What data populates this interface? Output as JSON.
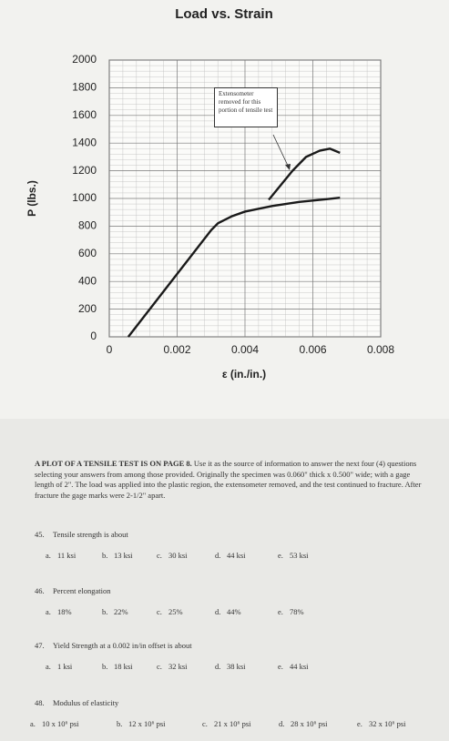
{
  "chart_data": {
    "type": "line",
    "title": "Load vs. Strain",
    "x_label": "ε (in./in.)",
    "y_label": "P (lbs.)",
    "xlim": [
      0,
      0.008
    ],
    "xticks": [
      0,
      0.002,
      0.004,
      0.006,
      0.008
    ],
    "ylim": [
      0,
      2000
    ],
    "yticks": [
      0,
      200,
      400,
      600,
      800,
      1000,
      1200,
      1400,
      1600,
      1800,
      2000
    ],
    "grid": true,
    "annotation": "Extensometer removed for this portion of tensile test",
    "series": [
      {
        "color": "#1a1a1a",
        "x": [
          0.00056,
          0.003,
          0.0032,
          0.0036,
          0.004,
          0.0048,
          0.0056,
          0.0064,
          0.0068
        ],
        "values": [
          0,
          770,
          820,
          870,
          905,
          945,
          975,
          995,
          1005
        ]
      },
      {
        "color": "#1a1a1a",
        "x": [
          0.0047,
          0.0054,
          0.0058,
          0.0062,
          0.0065,
          0.0068
        ],
        "values": [
          990,
          1200,
          1300,
          1345,
          1360,
          1330
        ]
      }
    ]
  },
  "intro": {
    "lead": "A PLOT OF A TENSILE TEST IS ON PAGE 8.",
    "text": "Use it as the source of information to answer the next four (4) questions selecting your answers from among those provided. Originally the specimen was 0.060\" thick x 0.500\" wide; with a gage length of 2\". The load was applied into the plastic region, the extensometer removed, and the test continued to fracture. After fracture the gage marks were 2-1/2\" apart."
  },
  "questions": [
    {
      "number": "45.",
      "text": "Tensile strength is about",
      "options": [
        {
          "letter": "a.",
          "text": "11 ksi"
        },
        {
          "letter": "b.",
          "text": "13 ksi"
        },
        {
          "letter": "c.",
          "text": "30 ksi"
        },
        {
          "letter": "d.",
          "text": "44 ksi"
        },
        {
          "letter": "e.",
          "text": "53 ksi"
        }
      ]
    },
    {
      "number": "46.",
      "text": "Percent elongation",
      "options": [
        {
          "letter": "a.",
          "text": "18%"
        },
        {
          "letter": "b.",
          "text": "22%"
        },
        {
          "letter": "c.",
          "text": "25%"
        },
        {
          "letter": "d.",
          "text": "44%"
        },
        {
          "letter": "e.",
          "text": "78%"
        }
      ]
    },
    {
      "number": "47.",
      "text": "Yield Strength at a 0.002 in/in offset is about",
      "options": [
        {
          "letter": "a.",
          "text": "1 ksi"
        },
        {
          "letter": "b.",
          "text": "18 ksi"
        },
        {
          "letter": "c.",
          "text": "32 ksi"
        },
        {
          "letter": "d.",
          "text": "38 ksi"
        },
        {
          "letter": "e.",
          "text": "44 ksi"
        }
      ]
    },
    {
      "number": "48.",
      "text": "Modulus of elasticity",
      "options": [
        {
          "letter": "a.",
          "text": "10 x 10⁶ psi"
        },
        {
          "letter": "b.",
          "text": "12 x 10⁶ psi"
        },
        {
          "letter": "c.",
          "text": "21 x 10⁶ psi"
        },
        {
          "letter": "d.",
          "text": "28 x 10⁶ psi"
        },
        {
          "letter": "e.",
          "text": "32 x 10⁶ psi"
        }
      ]
    }
  ]
}
